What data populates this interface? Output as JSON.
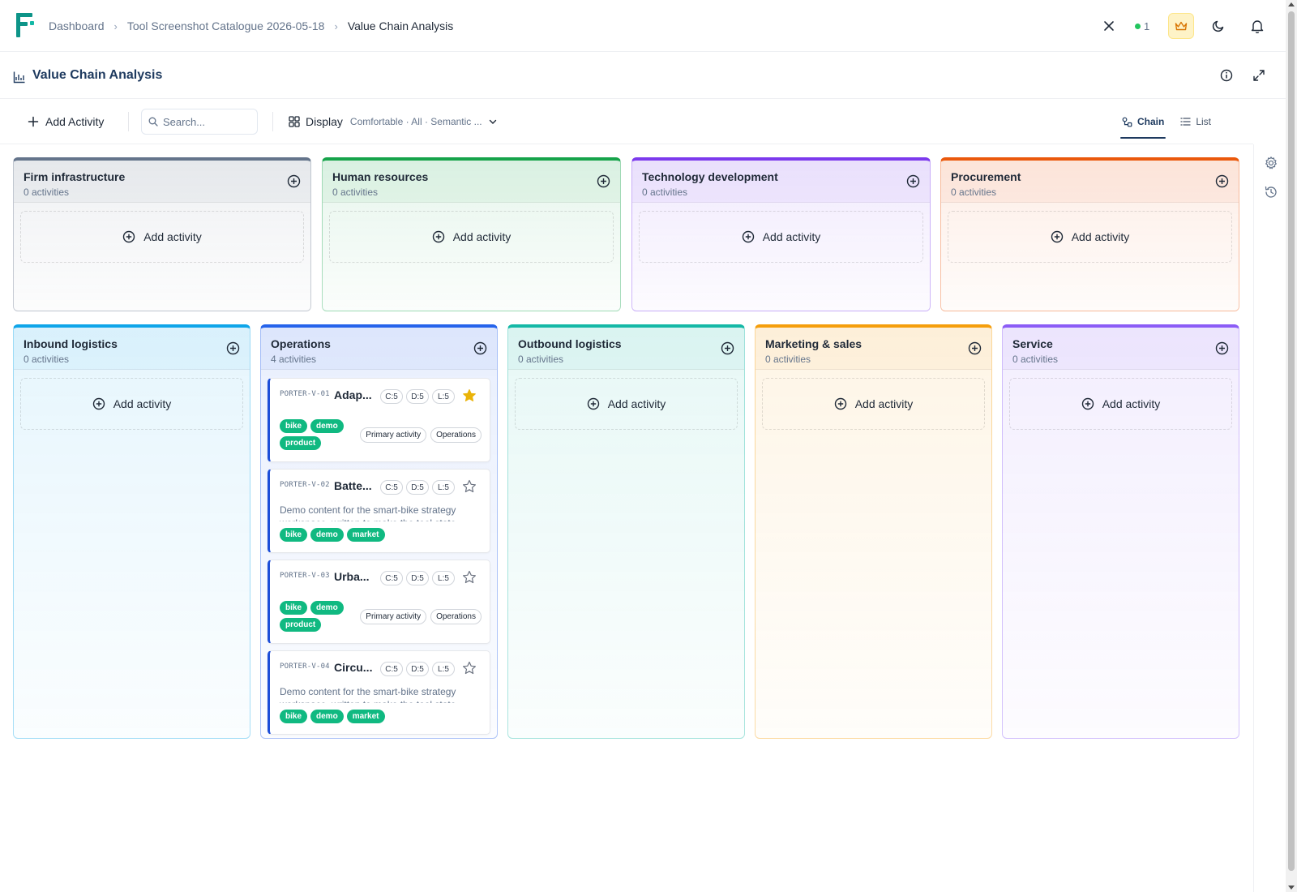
{
  "breadcrumb": {
    "items": [
      "Dashboard",
      "Tool Screenshot Catalogue 2026-05-18"
    ],
    "current": "Value Chain Analysis"
  },
  "presence": {
    "count": "1"
  },
  "page": {
    "title": "Value Chain Analysis"
  },
  "toolbar": {
    "add_label": "Add Activity",
    "search_placeholder": "Search...",
    "display_label": "Display",
    "display_summary": "Comfortable · All · Semantic ...",
    "view_chain": "Chain",
    "view_list": "List"
  },
  "add_activity_label": "Add activity",
  "support_columns": [
    {
      "title": "Firm infrastructure",
      "count": "0 activities",
      "color": "#64748b"
    },
    {
      "title": "Human resources",
      "count": "0 activities",
      "color": "#16a34a"
    },
    {
      "title": "Technology development",
      "count": "0 activities",
      "color": "#7c3aed"
    },
    {
      "title": "Procurement",
      "count": "0 activities",
      "color": "#ea580c"
    }
  ],
  "primary_columns": [
    {
      "title": "Inbound logistics",
      "count": "0 activities",
      "color": "#0ea5e9"
    },
    {
      "title": "Operations",
      "count": "4 activities",
      "color": "#2563eb"
    },
    {
      "title": "Outbound logistics",
      "count": "0 activities",
      "color": "#14b8a6"
    },
    {
      "title": "Marketing & sales",
      "count": "0 activities",
      "color": "#f59e0b"
    },
    {
      "title": "Service",
      "count": "0 activities",
      "color": "#8b5cf6"
    }
  ],
  "cards": [
    {
      "code": "PORTER-V-01",
      "title": "Adap...",
      "scores": [
        "C:5",
        "D:5",
        "L:5"
      ],
      "starred": true,
      "tags": [
        "bike",
        "demo",
        "product"
      ],
      "chips": [
        "Primary activity",
        "Operations"
      ]
    },
    {
      "code": "PORTER-V-02",
      "title": "Batte...",
      "scores": [
        "C:5",
        "D:5",
        "L:5"
      ],
      "starred": false,
      "description": "Demo content for the smart-bike strategy workspace, written to make the tool state",
      "tags": [
        "bike",
        "demo",
        "market"
      ]
    },
    {
      "code": "PORTER-V-03",
      "title": "Urba...",
      "scores": [
        "C:5",
        "D:5",
        "L:5"
      ],
      "starred": false,
      "tags": [
        "bike",
        "demo",
        "product"
      ],
      "chips": [
        "Primary activity",
        "Operations"
      ]
    },
    {
      "code": "PORTER-V-04",
      "title": "Circu...",
      "scores": [
        "C:5",
        "D:5",
        "L:5"
      ],
      "starred": false,
      "description": "Demo content for the smart-bike strategy workspace, written to make the tool state",
      "tags": [
        "bike",
        "demo",
        "market"
      ]
    }
  ],
  "colors": {
    "accent": "#1e3a5f",
    "tag": "#10b981",
    "star": "#eab308",
    "brand": "#0d9488"
  }
}
